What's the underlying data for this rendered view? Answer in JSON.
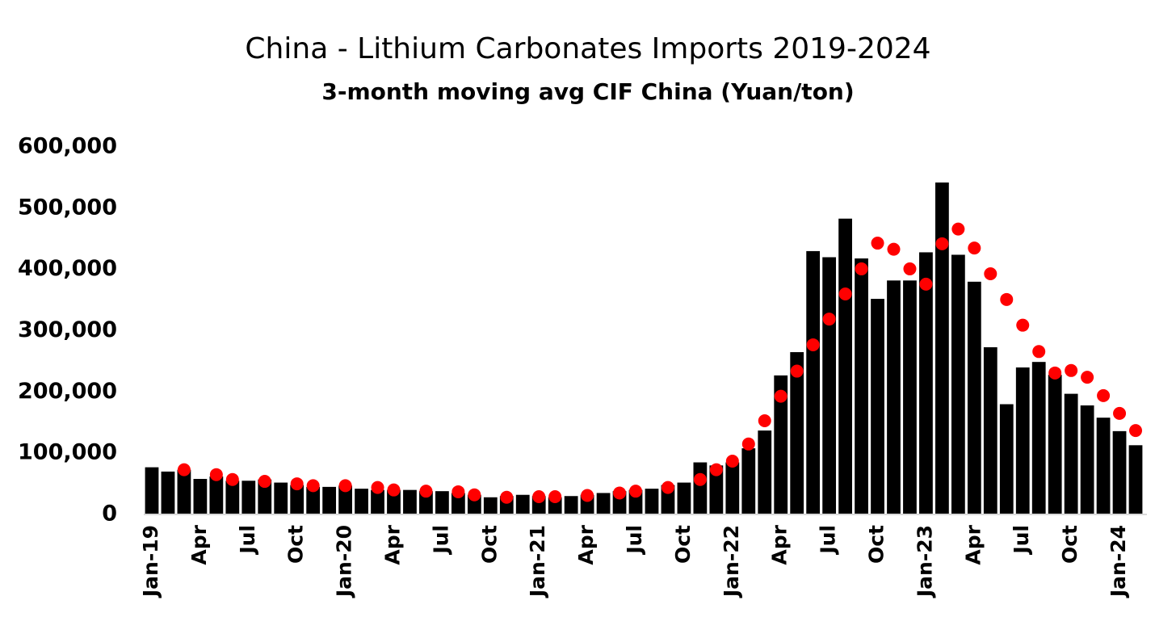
{
  "chart_data": {
    "type": "bar",
    "title": "China - Lithium Carbonates Imports 2019-2024",
    "subtitle": "3-month moving avg CIF China (Yuan/ton)",
    "categories": [
      "Jan-19",
      null,
      null,
      "Apr",
      null,
      null,
      "Jul",
      null,
      null,
      "Oct",
      null,
      null,
      "Jan-20",
      null,
      null,
      "Apr",
      null,
      null,
      "Jul",
      null,
      null,
      "Oct",
      null,
      null,
      "Jan-21",
      null,
      null,
      "Apr",
      null,
      null,
      "Jul",
      null,
      null,
      "Oct",
      null,
      null,
      "Jan-22",
      null,
      null,
      "Apr",
      null,
      null,
      "Jul",
      null,
      null,
      "Oct",
      null,
      null,
      "Jan-23",
      null,
      null,
      "Apr",
      null,
      null,
      "Jul",
      null,
      null,
      "Oct",
      null,
      null,
      "Jan-24",
      null
    ],
    "series": [
      {
        "type": "bar",
        "color": "#000000",
        "values": [
          77000,
          70000,
          73000,
          58000,
          62000,
          55000,
          55000,
          57000,
          52000,
          48000,
          45000,
          45000,
          47000,
          42000,
          40000,
          40000,
          40000,
          38000,
          38000,
          35000,
          32000,
          28000,
          30000,
          32000,
          30000,
          28000,
          30000,
          32000,
          35000,
          38000,
          40000,
          42000,
          48000,
          52000,
          85000,
          80000,
          85000,
          108000,
          137000,
          227000,
          265000,
          430000,
          420000,
          483000,
          418000,
          352000,
          382000,
          382000,
          428000,
          542000,
          424000,
          380000,
          273000,
          180000,
          240000,
          249000,
          228000,
          197000,
          178000,
          158000,
          136000,
          113000
        ]
      },
      {
        "type": "scatter",
        "color": "#ff0000",
        "values": [
          null,
          null,
          73000,
          null,
          65000,
          57000,
          null,
          54000,
          null,
          50000,
          47000,
          null,
          47000,
          null,
          44000,
          40000,
          null,
          38000,
          null,
          37000,
          32000,
          null,
          28000,
          null,
          29000,
          29000,
          null,
          31000,
          null,
          35000,
          38000,
          null,
          44000,
          null,
          57000,
          73000,
          87000,
          115000,
          153000,
          193000,
          234000,
          277000,
          319000,
          360000,
          401000,
          443000,
          433000,
          401000,
          376000,
          442000,
          466000,
          435000,
          393000,
          351000,
          309000,
          266000,
          231000,
          235000,
          224000,
          194000,
          165000,
          137000
        ]
      }
    ],
    "ylim": [
      0,
      600000
    ],
    "yticks": [
      0,
      {
        "value": 100000,
        "label": "100,000"
      },
      {
        "value": 200000,
        "label": "200,000"
      },
      {
        "value": 300000,
        "label": "300,000"
      },
      {
        "value": 400000,
        "label": "400,000"
      },
      {
        "value": 500000,
        "label": "500,000"
      },
      {
        "value": 600000,
        "label": "600,000"
      }
    ],
    "grid": false
  }
}
